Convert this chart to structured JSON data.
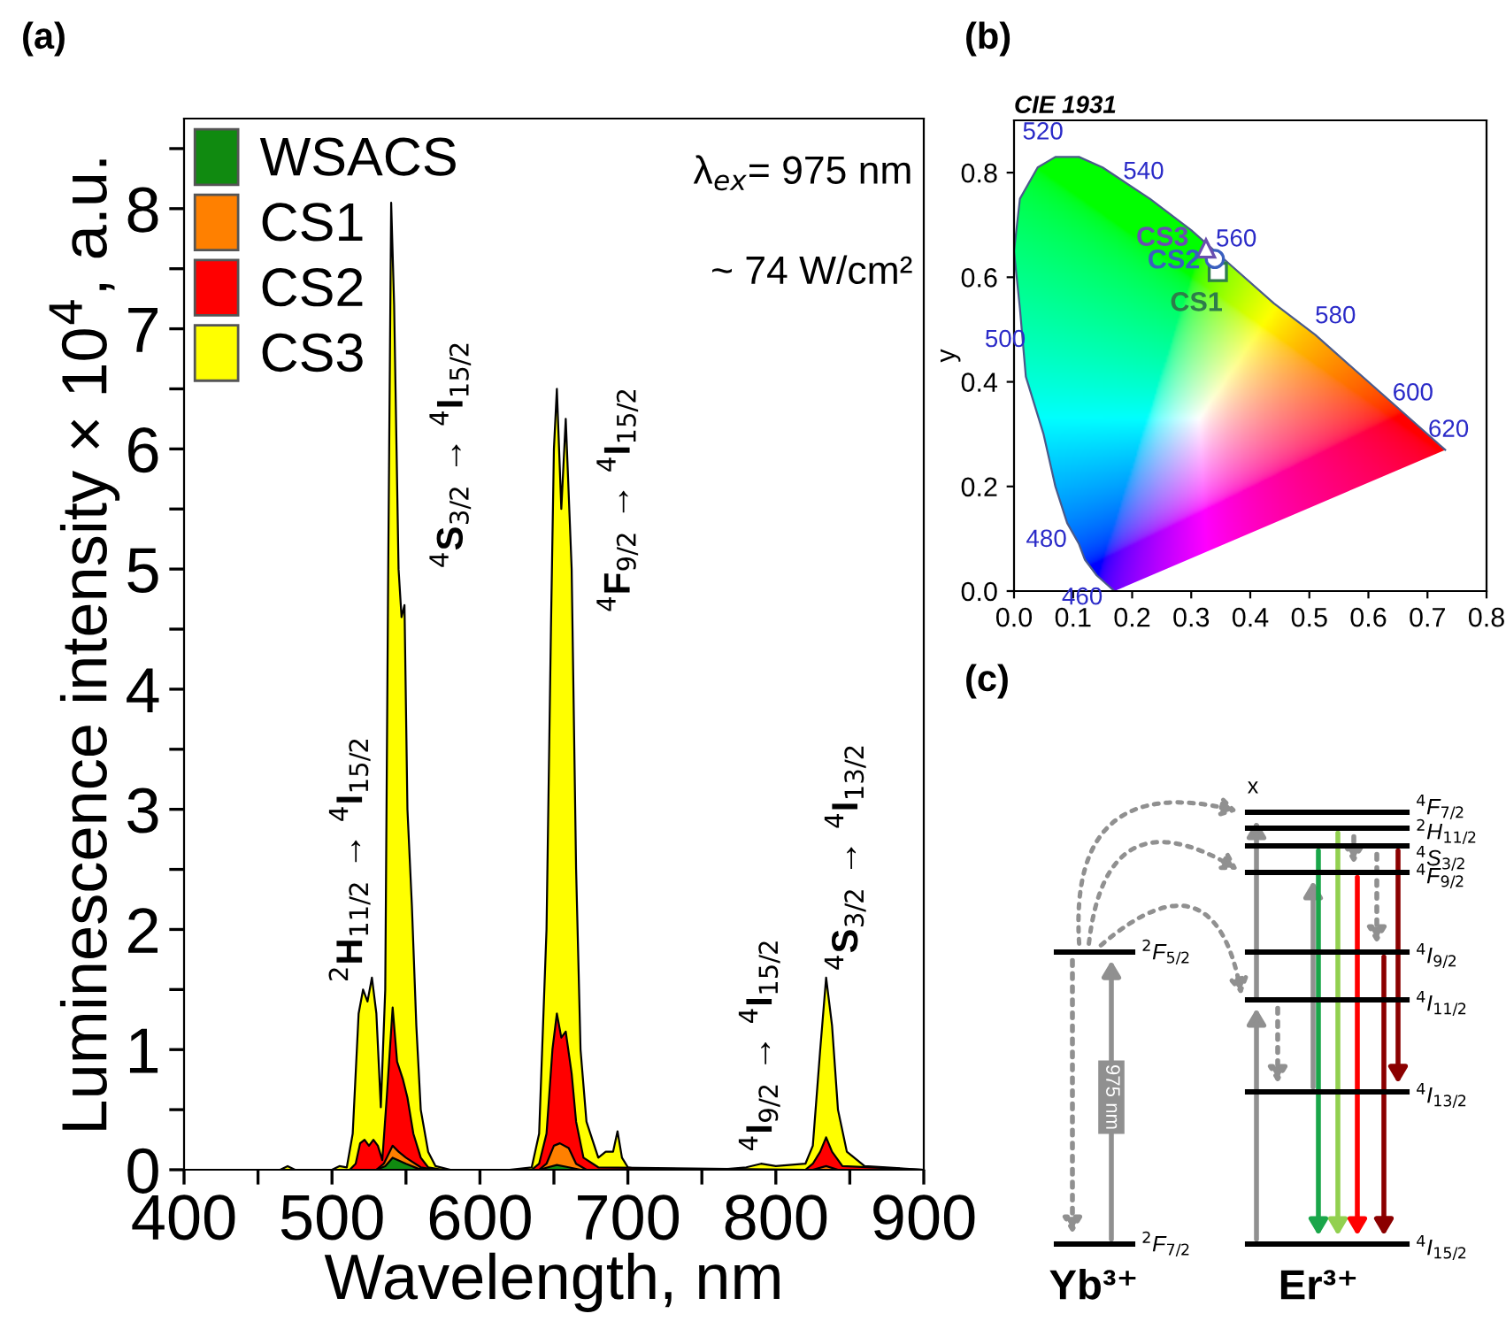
{
  "chart_data": [
    {
      "type": "area",
      "title": "(a)",
      "xlabel": "Wavelength, nm",
      "ylabel": "Luminescence intensity × 10$^{4}$, a.u.",
      "xlim": [
        400,
        900
      ],
      "ylim": [
        0,
        8.75
      ],
      "xticks": [
        400,
        {
          "value": 450,
          "label": null
        },
        500,
        {
          "value": 550,
          "label": null
        },
        600,
        {
          "value": 650,
          "label": null
        },
        700,
        {
          "value": 750,
          "label": null
        },
        800,
        {
          "value": 850,
          "label": null
        },
        900
      ],
      "yticks": [
        0,
        {
          "value": 0.5,
          "label": null
        },
        1,
        {
          "value": 1.5,
          "label": null
        },
        2,
        {
          "value": 2.5,
          "label": null
        },
        3,
        {
          "value": 3.5,
          "label": null
        },
        4,
        {
          "value": 4.5,
          "label": null
        },
        5,
        {
          "value": 5.5,
          "label": null
        },
        6,
        {
          "value": 6.5,
          "label": null
        },
        7,
        {
          "value": 7.5,
          "label": null
        },
        8,
        {
          "value": 8.5,
          "label": null
        }
      ],
      "legend": "top left",
      "grid": false,
      "series": [
        {
          "name": "WSACS",
          "color": "#108a10",
          "x": [
            400,
            530,
            536,
            541,
            550,
            558,
            565,
            640,
            646,
            652,
            660,
            668,
            900
          ],
          "values": [
            0,
            0,
            0.03,
            0.1,
            0.05,
            0.01,
            0,
            0,
            0.02,
            0.04,
            0.02,
            0,
            0
          ]
        },
        {
          "name": "CS1",
          "color": "#ff8000",
          "x": [
            400,
            530,
            535,
            541,
            545,
            550,
            560,
            570,
            640,
            645,
            650,
            654,
            660,
            665,
            672,
            825,
            834,
            842,
            900
          ],
          "values": [
            0,
            0,
            0.05,
            0.2,
            0.15,
            0.1,
            0.02,
            0,
            0,
            0.05,
            0.2,
            0.22,
            0.18,
            0.05,
            0,
            0,
            0.03,
            0,
            0
          ]
        },
        {
          "name": "CS2",
          "color": "#ff0000",
          "x": [
            400,
            512,
            516,
            519,
            522,
            525,
            528,
            531,
            534,
            537,
            541,
            544,
            548,
            551,
            555,
            560,
            565,
            575,
            635,
            640,
            645,
            649,
            652,
            655,
            658,
            662,
            665,
            670,
            680,
            820,
            825,
            830,
            834,
            838,
            845,
            900
          ],
          "values": [
            0,
            0,
            0.05,
            0.22,
            0.25,
            0.2,
            0.25,
            0.2,
            0.08,
            0.6,
            1.35,
            0.9,
            0.75,
            0.6,
            0.3,
            0.1,
            0.02,
            0,
            0,
            0.05,
            0.3,
            1.0,
            1.3,
            1.1,
            1.15,
            0.8,
            0.4,
            0.1,
            0.02,
            0,
            0.05,
            0.15,
            0.27,
            0.15,
            0.03,
            0
          ]
        },
        {
          "name": "CS3",
          "color": "#ffff00",
          "x": [
            400,
            440,
            465,
            470,
            475,
            500,
            505,
            510,
            514,
            518,
            521,
            524,
            527,
            530,
            533,
            536,
            538,
            540,
            542,
            545,
            547,
            549,
            551,
            554,
            557,
            560,
            565,
            570,
            580,
            620,
            635,
            640,
            645,
            648,
            650,
            652,
            655,
            658,
            662,
            665,
            668,
            672,
            680,
            685,
            690,
            693,
            696,
            700,
            710,
            760,
            780,
            790,
            800,
            820,
            825,
            830,
            834,
            838,
            842,
            848,
            860,
            900
          ],
          "values": [
            0,
            0,
            0,
            0.03,
            0,
            0,
            0.03,
            0.02,
            0.3,
            1.3,
            1.5,
            1.4,
            1.6,
            1.3,
            0.52,
            1.5,
            5.0,
            8.05,
            7.2,
            5.0,
            4.6,
            4.7,
            3.0,
            2.2,
            1.2,
            0.5,
            0.15,
            0.03,
            0,
            0,
            0.02,
            0.3,
            2.0,
            4.5,
            6.0,
            6.5,
            5.5,
            6.25,
            5.0,
            2.5,
            1.0,
            0.4,
            0.1,
            0.15,
            0.15,
            0.32,
            0.1,
            0.02,
            0,
            0,
            0.02,
            0.05,
            0.03,
            0.05,
            0.2,
            1.0,
            1.6,
            1.2,
            0.5,
            0.15,
            0.03,
            0
          ]
        }
      ],
      "annotations": [
        "λ$_{ex}$= 975 nm",
        "~ 74 W/cm²",
        "$^{2}$H$_{11/2}$ → $^{4}$I$_{15/2}$",
        "$^{4}$S$_{3/2}$ → $^{4}$I$_{15/2}$",
        "$^{4}$F$_{9/2}$ → $^{4}$I$_{15/2}$",
        "$^{4}$I$_{9/2}$ → $^{4}$I$_{15/2}$",
        "$^{4}$S$_{3/2}$ → $^{4}$I$_{13/2}$"
      ]
    },
    {
      "type": "scatter",
      "title": "(b)",
      "subtitle": "CIE 1931",
      "ylabel": "y",
      "xlim": [
        0,
        0.8
      ],
      "ylim": [
        0,
        0.9
      ],
      "xticks": [
        {
          "value": 0,
          "label": "0.0"
        },
        0.1,
        0.2,
        0.3,
        0.4,
        0.5,
        0.6,
        0.7,
        0.8
      ],
      "yticks": [
        {
          "value": 0,
          "label": "0.0"
        },
        0.2,
        0.4,
        0.6,
        0.8
      ],
      "grid": false,
      "series": [
        {
          "type": "line",
          "color": "#4a5a8a",
          "x": [
            0.17,
            0.14,
            0.12,
            0.11,
            0.09,
            0.07,
            0.05,
            0.02,
            0.01,
            0.0,
            0.01,
            0.04,
            0.07,
            0.11,
            0.15,
            0.23,
            0.3,
            0.37,
            0.44,
            0.51,
            0.58,
            0.63,
            0.69,
            0.72,
            0.73
          ],
          "values": [
            0.0,
            0.03,
            0.06,
            0.09,
            0.13,
            0.2,
            0.3,
            0.41,
            0.54,
            0.65,
            0.75,
            0.81,
            0.83,
            0.83,
            0.81,
            0.75,
            0.69,
            0.62,
            0.55,
            0.49,
            0.42,
            0.37,
            0.31,
            0.28,
            0.27
          ]
        },
        {
          "name": "CS1",
          "color": "#2e7d4a",
          "marker": "square",
          "x": [
            0.345
          ],
          "values": [
            0.61
          ]
        },
        {
          "name": "CS2",
          "color": "#3a5fbf",
          "marker": "circle",
          "x": [
            0.34
          ],
          "values": [
            0.635
          ]
        },
        {
          "name": "CS3",
          "color": "#6a4fb0",
          "marker": "triangle",
          "x": [
            0.325
          ],
          "values": [
            0.655
          ]
        }
      ],
      "annotations": [
        {
          "text": "460",
          "x": 0.14,
          "y": 0.03
        },
        {
          "text": "480",
          "x": 0.09,
          "y": 0.13
        },
        {
          "text": "500",
          "x": 0.01,
          "y": 0.54
        },
        {
          "text": "520",
          "x": 0.07,
          "y": 0.83
        },
        {
          "text": "540",
          "x": 0.23,
          "y": 0.75
        },
        {
          "text": "560",
          "x": 0.37,
          "y": 0.62
        },
        {
          "text": "580",
          "x": 0.51,
          "y": 0.49
        },
        {
          "text": "600",
          "x": 0.63,
          "y": 0.37
        },
        {
          "text": "620",
          "x": 0.69,
          "y": 0.31
        }
      ]
    },
    {
      "type": "other",
      "title": "(c)",
      "annotations": [
        "x",
        "$^{4}$F$_{7/2}$",
        "$^{2}$H$_{11/2}$",
        "$^{4}$S$_{3/2}$",
        "$^{4}$F$_{9/2}$",
        "$^{4}$I$_{9/2}$",
        "$^{4}$I$_{11/2}$",
        "$^{4}$I$_{13/2}$",
        "$^{4}$I$_{15/2}$",
        "$^{2}$F$_{5/2}$",
        "$^{2}$F$_{7/2}$",
        "975 nm",
        "Yb³⁺",
        "Er³⁺"
      ]
    }
  ]
}
